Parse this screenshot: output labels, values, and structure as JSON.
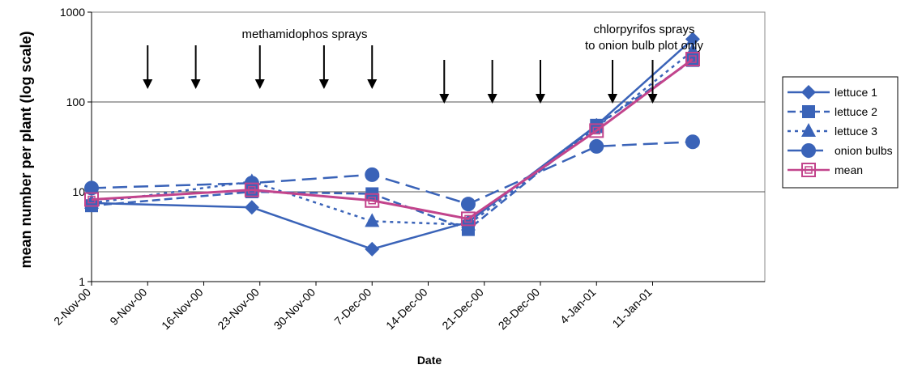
{
  "chart_data": {
    "type": "line",
    "title": "",
    "xlabel": "Date",
    "ylabel": "mean number per plant (log scale)",
    "yscale": "log",
    "ylim": [
      1,
      1000
    ],
    "ytick_labels": [
      "1",
      "10",
      "100",
      "1000"
    ],
    "yticks": [
      1,
      10,
      100,
      1000
    ],
    "xlim": [
      "2000-11-02",
      "2001-01-25"
    ],
    "xtick_labels": [
      "2-Nov-00",
      "9-Nov-00",
      "16-Nov-00",
      "23-Nov-00",
      "30-Nov-00",
      "7-Dec-00",
      "14-Dec-00",
      "21-Dec-00",
      "28-Dec-00",
      "4-Jan-01",
      "11-Jan-01"
    ],
    "xticks": [
      "2000-11-02",
      "2000-11-09",
      "2000-11-16",
      "2000-11-23",
      "2000-11-30",
      "2000-12-07",
      "2000-12-14",
      "2000-12-21",
      "2000-12-28",
      "2001-01-04",
      "2001-01-11"
    ],
    "grid": "horizontal",
    "legend_position": "right",
    "x": [
      "2000-11-02",
      "2000-11-22",
      "2000-12-07",
      "2000-12-19",
      "2001-01-04",
      "2001-01-16"
    ],
    "series": [
      {
        "name": "lettuce 1",
        "values": [
          7.5,
          6.7,
          2.3,
          4.6,
          55,
          500
        ],
        "color": "#3a63b8",
        "dash": "solid",
        "marker": "diamond"
      },
      {
        "name": "lettuce 2",
        "values": [
          7.0,
          10.0,
          9.5,
          3.8,
          55,
          290
        ],
        "color": "#3a63b8",
        "dash": "dashed",
        "marker": "square"
      },
      {
        "name": "lettuce 3",
        "values": [
          7.5,
          13.0,
          4.7,
          4.3,
          52,
          370
        ],
        "color": "#3a63b8",
        "dash": "dotted",
        "marker": "triangle"
      },
      {
        "name": "onion bulbs",
        "values": [
          11.0,
          12.5,
          15.5,
          7.3,
          32,
          36
        ],
        "color": "#3a63b8",
        "dash": "longdash",
        "marker": "circle"
      },
      {
        "name": "mean",
        "values": [
          8.2,
          10.5,
          8.0,
          5.0,
          48,
          300
        ],
        "color": "#c2448c",
        "dash": "solid",
        "marker": "open-square"
      }
    ],
    "annotations": [
      {
        "text": "methamidophos sprays",
        "arrows": [
          "2000-11-09",
          "2000-11-15",
          "2000-11-23",
          "2000-12-01",
          "2000-12-07"
        ]
      },
      {
        "text": "chlorpyrifos sprays",
        "text2": "to onion bulb plot only",
        "arrows": [
          "2000-12-16",
          "2000-12-22",
          "2000-12-28",
          "2001-01-06"
        ]
      }
    ],
    "extra_arrow": "2001-01-11"
  }
}
